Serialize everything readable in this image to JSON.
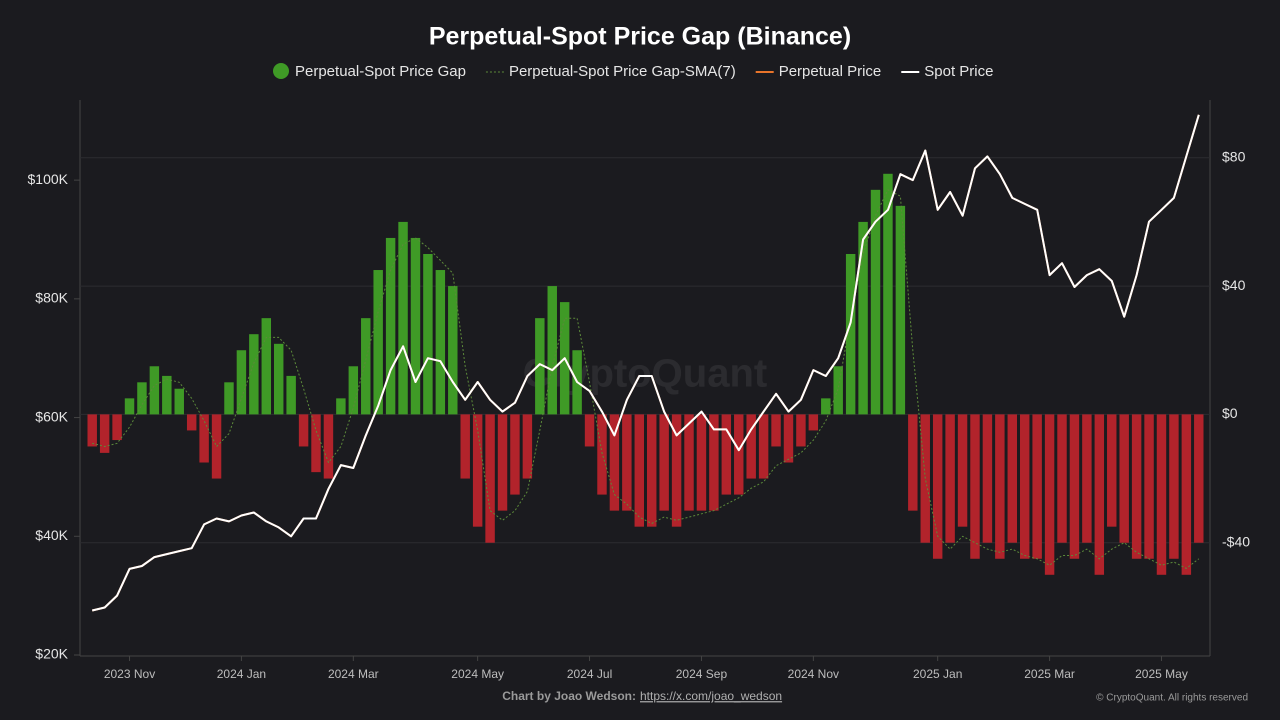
{
  "chart_data": {
    "type": "bar-line",
    "title": "Perpetual-Spot Price Gap (Binance)",
    "watermark": "CryptoQuant",
    "credit_label": "Chart by Joao Wedson:",
    "credit_link": "https://x.com/joao_wedson",
    "copyright": "© CryptoQuant. All rights reserved",
    "grid": true,
    "categories": [
      null,
      null,
      null,
      "2023 Nov",
      null,
      null,
      null,
      null,
      null,
      null,
      null,
      null,
      "2024 Jan",
      null,
      null,
      null,
      null,
      null,
      null,
      null,
      null,
      "2024 Mar",
      null,
      null,
      null,
      null,
      null,
      null,
      null,
      null,
      null,
      "2024 May",
      null,
      null,
      null,
      null,
      null,
      null,
      null,
      null,
      "2024 Jul",
      null,
      null,
      null,
      null,
      null,
      null,
      null,
      null,
      "2024 Sep",
      null,
      null,
      null,
      null,
      null,
      null,
      null,
      null,
      "2024 Nov",
      null,
      null,
      null,
      null,
      null,
      null,
      null,
      null,
      null,
      "2025 Jan",
      null,
      null,
      null,
      null,
      null,
      null,
      null,
      null,
      "2025 Mar",
      null,
      null,
      null,
      null,
      null,
      null,
      null,
      null,
      "2025 May",
      null,
      null,
      null
    ],
    "ylim": [
      20000,
      113500
    ],
    "yticks": [
      {
        "value": 20000,
        "label": "$20K"
      },
      {
        "value": 40000,
        "label": "$40K"
      },
      {
        "value": 60000,
        "label": "$60K"
      },
      {
        "value": 80000,
        "label": "$80K"
      },
      {
        "value": 100000,
        "label": "$100K"
      }
    ],
    "y2lim": [
      -75,
      98
    ],
    "y2ticks": [
      {
        "value": -40,
        "label": "-$40"
      },
      {
        "value": 0,
        "label": "$0"
      },
      {
        "value": 40,
        "label": "$40"
      },
      {
        "value": 80,
        "label": "$80"
      }
    ],
    "series": [
      {
        "name": "Perpetual-Spot Price Gap",
        "kind": "bar",
        "axis": "y2",
        "color": "#3f9a26",
        "negative_color": "#b2232b",
        "values": [
          -10,
          -12,
          -8,
          5,
          10,
          15,
          12,
          8,
          -5,
          -15,
          -20,
          10,
          20,
          25,
          30,
          22,
          12,
          -10,
          -18,
          -20,
          5,
          15,
          30,
          45,
          55,
          60,
          55,
          50,
          45,
          40,
          -20,
          -35,
          -40,
          -30,
          -25,
          -20,
          30,
          40,
          35,
          20,
          -10,
          -25,
          -30,
          -30,
          -35,
          -35,
          -30,
          -35,
          -30,
          -30,
          -30,
          -25,
          -25,
          -20,
          -20,
          -10,
          -15,
          -10,
          -5,
          5,
          15,
          50,
          60,
          70,
          75,
          65,
          -30,
          -40,
          -45,
          -40,
          -35,
          -45,
          -40,
          -45,
          -40,
          -45,
          -45,
          -50,
          -40,
          -45,
          -40,
          -50,
          -35,
          -40,
          -45,
          -45,
          -50,
          -45,
          -50,
          -40
        ]
      },
      {
        "name": "Perpetual-Spot Price Gap-SMA(7)",
        "kind": "dashed-line",
        "axis": "y2",
        "color": "#5c8a3a",
        "values": [
          -9,
          -10,
          -9,
          -4,
          3,
          9,
          11,
          10,
          5,
          -2,
          -10,
          -6,
          5,
          16,
          24,
          24,
          20,
          8,
          -5,
          -15,
          -10,
          2,
          17,
          32,
          45,
          53,
          55,
          52,
          48,
          44,
          15,
          -5,
          -30,
          -33,
          -30,
          -24,
          -5,
          15,
          30,
          30,
          10,
          -12,
          -25,
          -28,
          -32,
          -34,
          -32,
          -33,
          -32,
          -31,
          -30,
          -28,
          -26,
          -23,
          -21,
          -16,
          -14,
          -12,
          -8,
          -2,
          8,
          30,
          50,
          62,
          70,
          68,
          20,
          -20,
          -38,
          -42,
          -38,
          -40,
          -42,
          -43,
          -42,
          -44,
          -45,
          -47,
          -44,
          -44,
          -42,
          -45,
          -42,
          -40,
          -43,
          -45,
          -47,
          -46,
          -48,
          -45
        ]
      },
      {
        "name": "Perpetual Price",
        "kind": "line",
        "color": "#e8742a",
        "values": [
          27500,
          28000,
          30000,
          34500,
          35000,
          36500,
          37000,
          37500,
          38000,
          42000,
          43000,
          42500,
          43500,
          44000,
          42500,
          41500,
          40000,
          43000,
          43000,
          48000,
          52000,
          51500,
          57000,
          62000,
          68000,
          72000,
          66000,
          70000,
          69500,
          66000,
          63000,
          66000,
          63000,
          61000,
          62500,
          67000,
          69000,
          68000,
          70000,
          66000,
          64500,
          61000,
          57000,
          63000,
          67000,
          67000,
          61000,
          57000,
          59000,
          61000,
          58000,
          58000,
          54500,
          58000,
          61000,
          64000,
          61000,
          63000,
          68000,
          67000,
          70000,
          76000,
          90000,
          93000,
          95000,
          101000,
          100000,
          105000,
          95000,
          98000,
          94000,
          102000,
          104000,
          101000,
          97000,
          96000,
          95000,
          84000,
          86000,
          82000,
          84000,
          85000,
          83000,
          77000,
          84000,
          93000,
          95000,
          97000,
          104000,
          111000
        ]
      },
      {
        "name": "Spot Price",
        "kind": "line",
        "color": "#ffffff",
        "values": [
          27500,
          28000,
          30000,
          34500,
          35000,
          36500,
          37000,
          37500,
          38000,
          42000,
          43000,
          42500,
          43500,
          44000,
          42500,
          41500,
          40000,
          43000,
          43000,
          48000,
          52000,
          51500,
          57000,
          62000,
          68000,
          72000,
          66000,
          70000,
          69500,
          66000,
          63000,
          66000,
          63000,
          61000,
          62500,
          67000,
          69000,
          68000,
          70000,
          66000,
          64500,
          61000,
          57000,
          63000,
          67000,
          67000,
          61000,
          57000,
          59000,
          61000,
          58000,
          58000,
          54500,
          58000,
          61000,
          64000,
          61000,
          63000,
          68000,
          67000,
          70000,
          76000,
          90000,
          93000,
          95000,
          101000,
          100000,
          105000,
          95000,
          98000,
          94000,
          102000,
          104000,
          101000,
          97000,
          96000,
          95000,
          84000,
          86000,
          82000,
          84000,
          85000,
          83000,
          77000,
          84000,
          93000,
          95000,
          97000,
          104000,
          111000
        ]
      }
    ]
  }
}
